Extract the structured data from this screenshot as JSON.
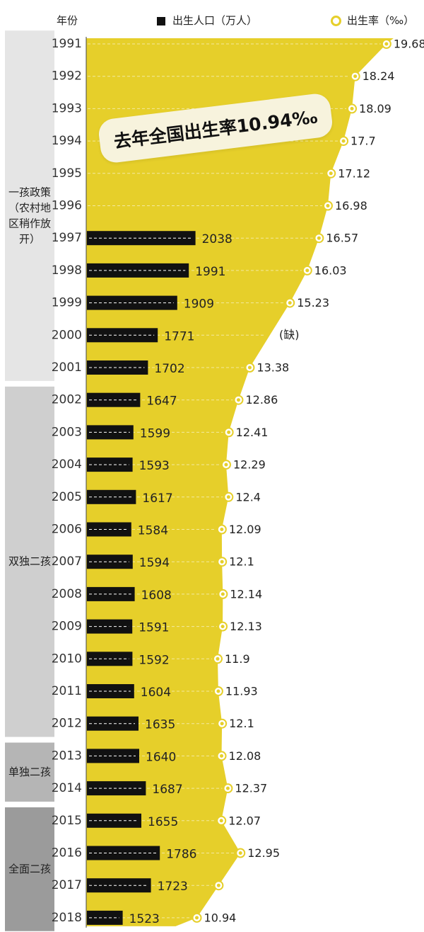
{
  "header": {
    "year_label": "年份",
    "births_legend": "出生人口（万人）",
    "rate_legend": "出生率（‰）"
  },
  "callout": "去年全国出生率10.94‰",
  "missing_label": "(缺)",
  "colors": {
    "area": "#e6cf2a",
    "bar": "#111111",
    "marker": "#e6cf2a",
    "policy_one_child": "#e5e5e5",
    "policy_double_only": "#cfcfcf",
    "policy_single_only": "#b5b5b5",
    "policy_universal": "#9b9b9b"
  },
  "chart_data": {
    "type": "bar",
    "categories": [
      "1991",
      "1992",
      "1993",
      "1994",
      "1995",
      "1996",
      "1997",
      "1998",
      "1999",
      "2000",
      "2001",
      "2002",
      "2003",
      "2004",
      "2005",
      "2006",
      "2007",
      "2008",
      "2009",
      "2010",
      "2011",
      "2012",
      "2013",
      "2014",
      "2015",
      "2016",
      "2017",
      "2018"
    ],
    "series": [
      {
        "name": "出生人口（万人）",
        "type": "bar",
        "values": [
          null,
          null,
          null,
          null,
          null,
          null,
          2038,
          1991,
          1909,
          1771,
          1702,
          1647,
          1599,
          1593,
          1617,
          1584,
          1594,
          1608,
          1591,
          1592,
          1604,
          1635,
          1640,
          1687,
          1655,
          1786,
          1723,
          1523
        ]
      },
      {
        "name": "出生率（‰）",
        "type": "area",
        "values": [
          19.68,
          18.24,
          18.09,
          17.7,
          17.12,
          16.98,
          16.57,
          16.03,
          15.23,
          null,
          13.38,
          12.86,
          12.41,
          12.29,
          12.4,
          12.09,
          12.1,
          12.14,
          12.13,
          11.9,
          11.93,
          12.1,
          12.08,
          12.37,
          12.07,
          12.95,
          null,
          10.94
        ]
      }
    ],
    "policies": [
      {
        "label": "一孩政策（农村地区稍作放开）",
        "from": "1991",
        "to": "2001"
      },
      {
        "label": "双独二孩",
        "from": "2002",
        "to": "2012"
      },
      {
        "label": "单独二孩",
        "from": "2013",
        "to": "2014"
      },
      {
        "label": "全面二孩",
        "from": "2015",
        "to": "2018"
      }
    ],
    "orientation": "horizontal",
    "grid": false,
    "legend": "top"
  }
}
